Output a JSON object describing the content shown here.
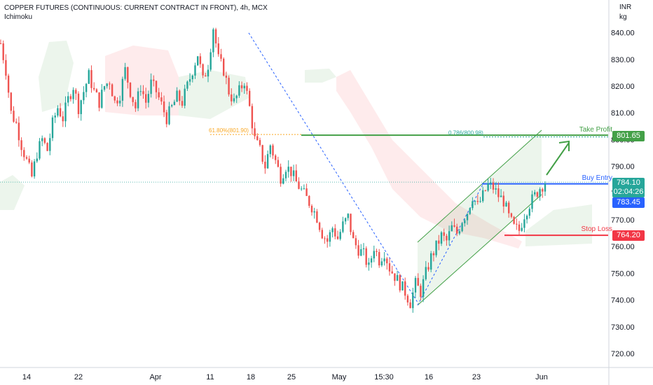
{
  "header": {
    "title": "COPPER FUTURES (CONTINUOUS: CURRENT CONTRACT IN FRONT), 4h, MCX",
    "indicator": "Ichimoku",
    "currency": "INR",
    "unit": "kg"
  },
  "levels": {
    "take_profit": {
      "label": "Take Profit",
      "price": "801.65",
      "color": "#43a047"
    },
    "buy_entry": {
      "label": "Buy Entry",
      "price": "783.45",
      "color": "#2962ff"
    },
    "stop_loss": {
      "label": "Stop Loss",
      "price": "764.20",
      "color": "#f23645"
    },
    "last_price": {
      "price": "784.10",
      "countdown": "02:04:26",
      "color": "#26a69a"
    }
  },
  "fib_labels": {
    "left": "61.80%(801.90)",
    "right": "0.786(800.98)"
  },
  "chart_data": {
    "type": "candlestick",
    "title": "COPPER FUTURES (CONTINUOUS: CURRENT CONTRACT IN FRONT), 4h, MCX",
    "ylim": [
      712,
      848
    ],
    "y_ticks": [
      "720.00",
      "730.00",
      "740.00",
      "750.00",
      "760.00",
      "770.00",
      "780.00",
      "790.00",
      "800.00",
      "810.00",
      "820.00",
      "830.00",
      "840.00"
    ],
    "x_ticks": [
      "14",
      "22",
      "Apr",
      "11",
      "18",
      "25",
      "May",
      "15:30",
      "16",
      "23",
      "Jun"
    ],
    "price_path": [
      [
        0,
        836
      ],
      [
        2,
        826
      ],
      [
        4,
        810
      ],
      [
        6,
        806
      ],
      [
        8,
        798
      ],
      [
        10,
        792
      ],
      [
        12,
        786
      ],
      [
        14,
        795
      ],
      [
        16,
        800
      ],
      [
        18,
        796
      ],
      [
        20,
        806
      ],
      [
        22,
        812
      ],
      [
        24,
        808
      ],
      [
        26,
        815
      ],
      [
        28,
        820
      ],
      [
        30,
        812
      ],
      [
        32,
        818
      ],
      [
        34,
        824
      ],
      [
        36,
        818
      ],
      [
        38,
        814
      ],
      [
        40,
        820
      ],
      [
        42,
        822
      ],
      [
        44,
        814
      ],
      [
        46,
        817
      ],
      [
        48,
        826
      ],
      [
        50,
        818
      ],
      [
        52,
        812
      ],
      [
        54,
        820
      ],
      [
        56,
        814
      ],
      [
        58,
        821
      ],
      [
        60,
        818
      ],
      [
        62,
        813
      ],
      [
        64,
        808
      ],
      [
        66,
        812
      ],
      [
        68,
        816
      ],
      [
        70,
        814
      ],
      [
        72,
        820
      ],
      [
        74,
        826
      ],
      [
        76,
        832
      ],
      [
        78,
        822
      ],
      [
        80,
        828
      ],
      [
        82,
        842
      ],
      [
        84,
        830
      ],
      [
        86,
        826
      ],
      [
        88,
        818
      ],
      [
        90,
        814
      ],
      [
        92,
        818
      ],
      [
        94,
        822
      ],
      [
        96,
        812
      ],
      [
        98,
        800
      ],
      [
        100,
        796
      ],
      [
        102,
        790
      ],
      [
        104,
        798
      ],
      [
        106,
        792
      ],
      [
        108,
        786
      ],
      [
        110,
        790
      ],
      [
        112,
        788
      ],
      [
        114,
        784
      ],
      [
        116,
        781
      ],
      [
        118,
        778
      ],
      [
        120,
        775
      ],
      [
        122,
        771
      ],
      [
        124,
        765
      ],
      [
        126,
        762
      ],
      [
        128,
        767
      ],
      [
        130,
        763
      ],
      [
        132,
        768
      ],
      [
        134,
        771
      ],
      [
        136,
        762
      ],
      [
        138,
        759
      ],
      [
        140,
        757
      ],
      [
        142,
        752
      ],
      [
        144,
        760
      ],
      [
        146,
        755
      ],
      [
        148,
        758
      ],
      [
        150,
        752
      ],
      [
        152,
        749
      ],
      [
        154,
        746
      ],
      [
        156,
        743
      ],
      [
        158,
        739
      ],
      [
        160,
        746
      ],
      [
        162,
        743
      ],
      [
        164,
        750
      ],
      [
        166,
        756
      ],
      [
        168,
        760
      ],
      [
        170,
        764
      ],
      [
        172,
        762
      ],
      [
        174,
        767
      ],
      [
        176,
        765
      ],
      [
        178,
        770
      ],
      [
        180,
        773
      ],
      [
        182,
        779
      ],
      [
        184,
        775
      ],
      [
        186,
        779
      ],
      [
        188,
        783
      ],
      [
        190,
        782
      ],
      [
        192,
        779
      ],
      [
        194,
        777
      ],
      [
        196,
        771
      ],
      [
        198,
        767
      ],
      [
        200,
        766
      ],
      [
        202,
        772
      ],
      [
        204,
        776
      ],
      [
        206,
        779
      ],
      [
        208,
        782
      ],
      [
        210,
        784.1
      ]
    ],
    "levels": {
      "take_profit": 801.65,
      "buy_entry": 783.45,
      "stop_loss": 764.2,
      "last": 784.1,
      "fib_618": 801.9,
      "fib_786": 800.98
    },
    "annotations": [
      "Take Profit",
      "Buy Entry",
      "Stop Loss"
    ]
  }
}
